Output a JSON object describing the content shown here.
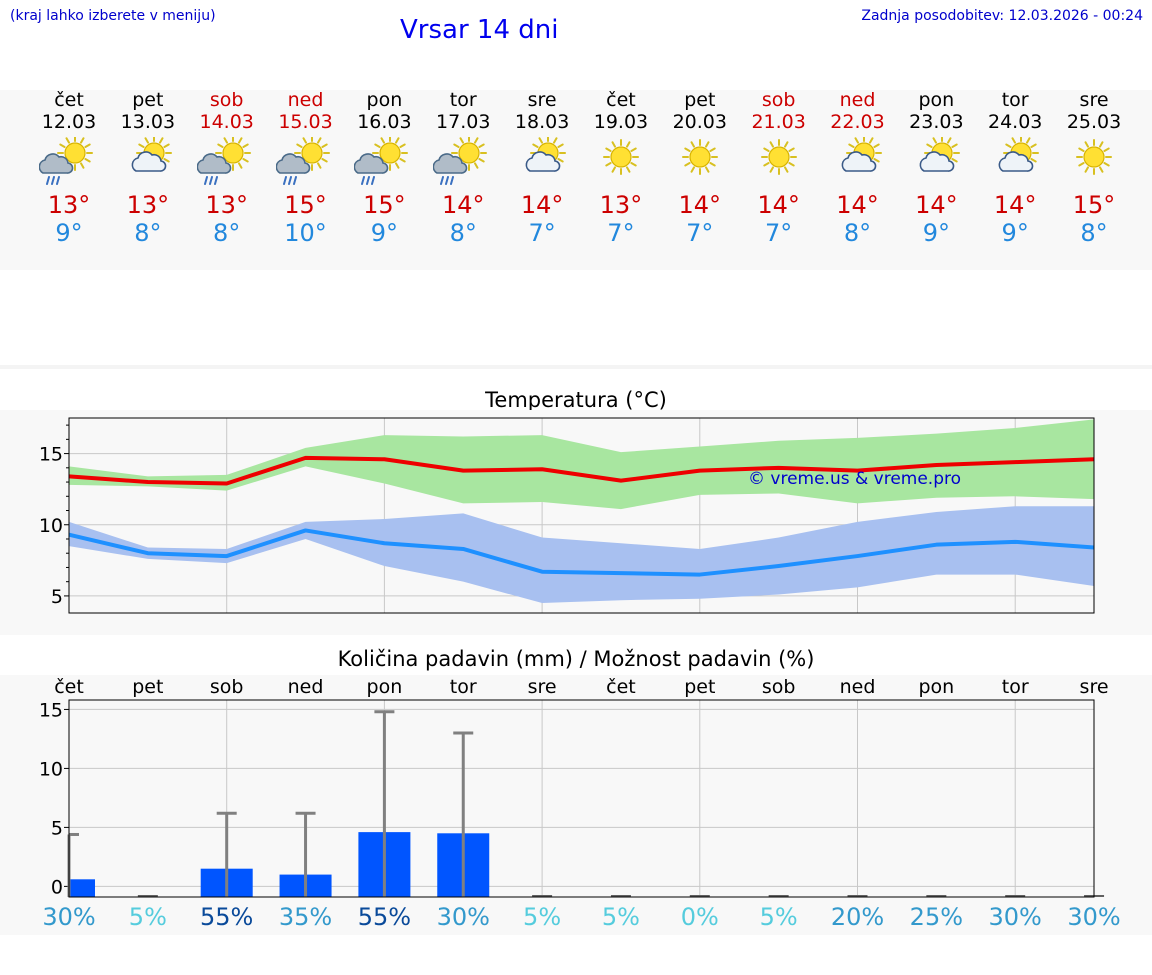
{
  "header": {
    "note": "(kraj lahko izberete v meniju)",
    "title": "Vrsar 14 dni",
    "updated": "Zadnja posodobitev: 12.03.2026 - 00:24"
  },
  "days": [
    {
      "name": "čet",
      "date": "12.03",
      "weekend": false,
      "icon": "sun-cloud-rain-icon",
      "tmax": "13°",
      "tmin": "9°"
    },
    {
      "name": "pet",
      "date": "13.03",
      "weekend": false,
      "icon": "sun-cloud-icon",
      "tmax": "13°",
      "tmin": "8°"
    },
    {
      "name": "sob",
      "date": "14.03",
      "weekend": true,
      "icon": "sun-cloud-rain-icon",
      "tmax": "13°",
      "tmin": "8°"
    },
    {
      "name": "ned",
      "date": "15.03",
      "weekend": true,
      "icon": "sun-cloud-rain-icon",
      "tmax": "15°",
      "tmin": "10°"
    },
    {
      "name": "pon",
      "date": "16.03",
      "weekend": false,
      "icon": "sun-cloud-rain-icon",
      "tmax": "15°",
      "tmin": "9°"
    },
    {
      "name": "tor",
      "date": "17.03",
      "weekend": false,
      "icon": "sun-cloud-rain-icon",
      "tmax": "14°",
      "tmin": "8°"
    },
    {
      "name": "sre",
      "date": "18.03",
      "weekend": false,
      "icon": "sun-cloud-icon",
      "tmax": "14°",
      "tmin": "7°"
    },
    {
      "name": "čet",
      "date": "19.03",
      "weekend": false,
      "icon": "sun-icon",
      "tmax": "13°",
      "tmin": "7°"
    },
    {
      "name": "pet",
      "date": "20.03",
      "weekend": false,
      "icon": "sun-icon",
      "tmax": "14°",
      "tmin": "7°"
    },
    {
      "name": "sob",
      "date": "21.03",
      "weekend": true,
      "icon": "sun-icon",
      "tmax": "14°",
      "tmin": "7°"
    },
    {
      "name": "ned",
      "date": "22.03",
      "weekend": true,
      "icon": "sun-cloud-icon",
      "tmax": "14°",
      "tmin": "8°"
    },
    {
      "name": "pon",
      "date": "23.03",
      "weekend": false,
      "icon": "sun-cloud-icon",
      "tmax": "14°",
      "tmin": "9°"
    },
    {
      "name": "tor",
      "date": "24.03",
      "weekend": false,
      "icon": "sun-cloud-icon",
      "tmax": "14°",
      "tmin": "9°"
    },
    {
      "name": "sre",
      "date": "25.03",
      "weekend": false,
      "icon": "sun-icon",
      "tmax": "15°",
      "tmin": "8°"
    }
  ],
  "colors": {
    "max_line": "#ee0000",
    "max_band": "#a8e6a0",
    "min_line": "#1e90ff",
    "min_band": "#a8c0f0",
    "bar": "#0055ff",
    "whisker": "#808080",
    "watermark": "#0000cc"
  },
  "chart_data": [
    {
      "type": "line",
      "title": "Temperatura (°C)",
      "watermark": "© vreme.us & vreme.pro",
      "ylim": [
        3.8,
        17.5
      ],
      "yticks": [
        5,
        10,
        15
      ],
      "grid": true,
      "x": [
        0,
        1,
        2,
        3,
        4,
        5,
        6,
        7,
        8,
        9,
        10,
        11,
        12,
        13
      ],
      "series": [
        {
          "name": "max",
          "values": [
            13.4,
            13.0,
            12.9,
            14.7,
            14.6,
            13.8,
            13.9,
            13.1,
            13.8,
            14.0,
            13.8,
            14.2,
            14.4,
            14.6
          ],
          "band_low": [
            12.8,
            12.7,
            12.4,
            14.1,
            12.9,
            11.5,
            11.6,
            11.1,
            12.1,
            12.2,
            11.5,
            11.9,
            12.0,
            11.8
          ],
          "band_high": [
            14.1,
            13.4,
            13.5,
            15.4,
            16.3,
            16.2,
            16.3,
            15.1,
            15.5,
            15.9,
            16.1,
            16.4,
            16.8,
            17.4
          ]
        },
        {
          "name": "min",
          "values": [
            9.3,
            8.0,
            7.8,
            9.6,
            8.7,
            8.3,
            6.7,
            6.6,
            6.5,
            7.1,
            7.8,
            8.6,
            8.8,
            8.4
          ],
          "band_low": [
            8.5,
            7.6,
            7.3,
            9.0,
            7.1,
            6.0,
            4.5,
            4.7,
            4.8,
            5.1,
            5.6,
            6.5,
            6.5,
            5.7
          ],
          "band_high": [
            10.2,
            8.4,
            8.3,
            10.2,
            10.4,
            10.8,
            9.1,
            8.7,
            8.3,
            9.1,
            10.2,
            10.9,
            11.3,
            11.3
          ]
        }
      ]
    },
    {
      "type": "bar",
      "title": "Količina padavin (mm) / Možnost padavin (%)",
      "ylim": [
        -0.9,
        15.8
      ],
      "yticks": [
        0,
        5,
        10,
        15
      ],
      "grid": true,
      "categories": [
        "čet",
        "pet",
        "sob",
        "ned",
        "pon",
        "tor",
        "sre",
        "čet",
        "pet",
        "sob",
        "ned",
        "pon",
        "tor",
        "sre"
      ],
      "values": [
        0.6,
        0,
        1.5,
        1.0,
        4.6,
        4.5,
        0,
        0,
        0,
        0,
        0,
        0,
        0,
        0
      ],
      "whisker_high": [
        4.4,
        0,
        6.2,
        6.2,
        14.8,
        13.0,
        0,
        0,
        0,
        0,
        0,
        0,
        0,
        0
      ],
      "probability": [
        "30%",
        "5%",
        "55%",
        "35%",
        "55%",
        "30%",
        "5%",
        "5%",
        "0%",
        "5%",
        "20%",
        "25%",
        "30%",
        "30%"
      ],
      "probability_colors": [
        "#3399cc",
        "#55ccdd",
        "#0a4a9a",
        "#3399cc",
        "#0a4a9a",
        "#3399cc",
        "#55ccdd",
        "#55ccdd",
        "#55ccdd",
        "#55ccdd",
        "#3399cc",
        "#3399cc",
        "#3399cc",
        "#3399cc"
      ]
    }
  ]
}
